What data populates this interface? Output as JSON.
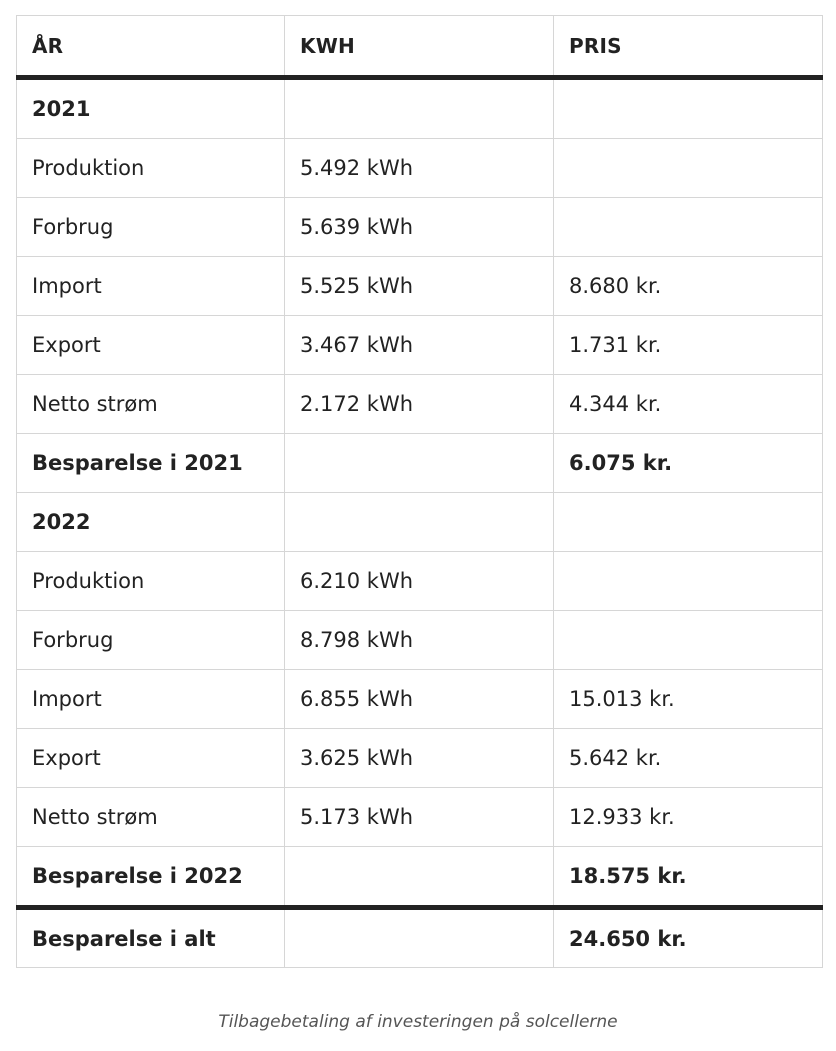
{
  "table": {
    "headers": [
      "ÅR",
      "KWH",
      "PRIS"
    ],
    "rows": [
      {
        "label": "2021",
        "kwh": "",
        "price": "",
        "bold": true
      },
      {
        "label": "Produktion",
        "kwh": "5.492 kWh",
        "price": "",
        "bold": false
      },
      {
        "label": "Forbrug",
        "kwh": "5.639 kWh",
        "price": "",
        "bold": false
      },
      {
        "label": "Import",
        "kwh": "5.525 kWh",
        "price": "8.680 kr.",
        "bold": false
      },
      {
        "label": "Export",
        "kwh": "3.467 kWh",
        "price": "1.731 kr.",
        "bold": false
      },
      {
        "label": "Netto strøm",
        "kwh": "2.172 kWh",
        "price": "4.344 kr.",
        "bold": false
      },
      {
        "label": "Besparelse i 2021",
        "kwh": "",
        "price": "6.075 kr.",
        "bold": true
      },
      {
        "label": "2022",
        "kwh": "",
        "price": "",
        "bold": true
      },
      {
        "label": "Produktion",
        "kwh": "6.210 kWh",
        "price": "",
        "bold": false
      },
      {
        "label": "Forbrug",
        "kwh": "8.798 kWh",
        "price": "",
        "bold": false
      },
      {
        "label": "Import",
        "kwh": "6.855 kWh",
        "price": "15.013 kr.",
        "bold": false
      },
      {
        "label": "Export",
        "kwh": "3.625 kWh",
        "price": "5.642 kr.",
        "bold": false
      },
      {
        "label": "Netto strøm",
        "kwh": "5.173 kWh",
        "price": "12.933 kr.",
        "bold": false
      },
      {
        "label": "Besparelse i 2022",
        "kwh": "",
        "price": "18.575 kr.",
        "bold": true
      }
    ],
    "total": {
      "label": "Besparelse i alt",
      "kwh": "",
      "price": "24.650 kr."
    }
  },
  "caption": "Tilbagebetaling af investeringen på solcellerne"
}
